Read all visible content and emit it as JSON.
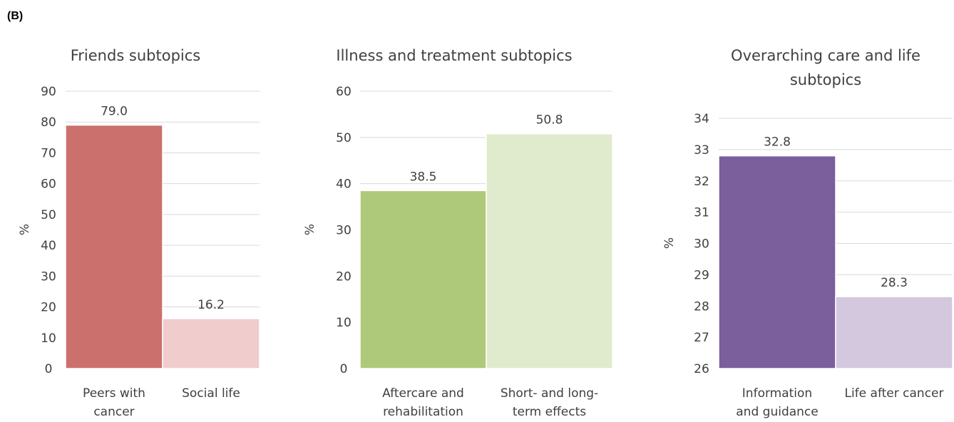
{
  "panel_label": "(B)",
  "chart_data": [
    {
      "type": "bar",
      "title": [
        "Friends subtopics"
      ],
      "ylabel": "%",
      "ylim": [
        0,
        90
      ],
      "ytick_step": 10,
      "grid": true,
      "categories": [
        [
          "Peers with",
          "cancer"
        ],
        [
          "Social life"
        ]
      ],
      "values": [
        79.0,
        16.2
      ],
      "data_labels": [
        "79.0",
        "16.2"
      ],
      "colors": [
        "#cc706d",
        "#f0cccc"
      ]
    },
    {
      "type": "bar",
      "title": [
        "Illness and treatment subtopics"
      ],
      "ylabel": "%",
      "ylim": [
        0,
        60
      ],
      "ytick_step": 10,
      "grid": true,
      "categories": [
        [
          "Aftercare and",
          "rehabilitation"
        ],
        [
          "Short- and long-",
          "term effects"
        ]
      ],
      "values": [
        38.5,
        50.8
      ],
      "data_labels": [
        "38.5",
        "50.8"
      ],
      "colors": [
        "#afc97b",
        "#e0ebcd"
      ]
    },
    {
      "type": "bar",
      "title": [
        "Overarching care and life",
        "subtopics"
      ],
      "ylabel": "%",
      "ylim": [
        26,
        34
      ],
      "ytick_step": 1,
      "grid": true,
      "categories": [
        [
          "Information",
          "and guidance"
        ],
        [
          "Life after cancer"
        ]
      ],
      "values": [
        32.8,
        28.3
      ],
      "data_labels": [
        "32.8",
        "28.3"
      ],
      "colors": [
        "#7b5e9c",
        "#d3c8de"
      ]
    }
  ]
}
